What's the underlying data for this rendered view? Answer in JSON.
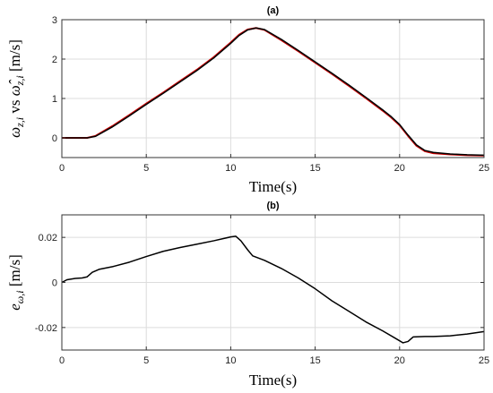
{
  "chart_data": [
    {
      "type": "line",
      "title": "(a)",
      "xlabel": "Time(s)",
      "ylabel": "ω",
      "ylabel_sub": "z,i",
      "ylabel_mid": " vs ",
      "ylabel_hat": "ω̂",
      "ylabel_hat_sub": "z,i",
      "ylabel_units": " [m/s]",
      "xlim": [
        0,
        25
      ],
      "ylim": [
        -0.5,
        3
      ],
      "xticks": [
        "0",
        "5",
        "10",
        "15",
        "20",
        "25"
      ],
      "yticks": [
        "0",
        "1",
        "2",
        "3"
      ],
      "grid": true,
      "series": [
        {
          "color": "#cc0000",
          "x": [
            0,
            0.5,
            1.0,
            1.5,
            2.0,
            3,
            4,
            5,
            6,
            7,
            8,
            9,
            10,
            10.5,
            11.0,
            11.5,
            12.0,
            13,
            14,
            15,
            16,
            17,
            18,
            19,
            19.5,
            20.0,
            20.5,
            21.0,
            21.5,
            22,
            23,
            24,
            25
          ],
          "y": [
            0,
            0,
            0.0,
            0.0,
            0.05,
            0.3,
            0.58,
            0.87,
            1.15,
            1.44,
            1.73,
            2.05,
            2.42,
            2.62,
            2.75,
            2.79,
            2.74,
            2.48,
            2.2,
            1.91,
            1.62,
            1.32,
            1.01,
            0.69,
            0.52,
            0.32,
            0.05,
            -0.2,
            -0.34,
            -0.39,
            -0.42,
            -0.44,
            -0.45
          ]
        },
        {
          "color": "#000000",
          "x": [
            0,
            0.5,
            1.0,
            1.5,
            2.0,
            3,
            4,
            5,
            6,
            7,
            8,
            9,
            10,
            10.5,
            11.0,
            11.5,
            12.0,
            13,
            14,
            15,
            16,
            17,
            18,
            19,
            19.5,
            20.0,
            20.5,
            21.0,
            21.5,
            22,
            23,
            24,
            25
          ],
          "y": [
            0,
            0,
            0.0,
            0.0,
            0.04,
            0.28,
            0.56,
            0.85,
            1.13,
            1.42,
            1.71,
            2.03,
            2.4,
            2.6,
            2.74,
            2.79,
            2.75,
            2.5,
            2.22,
            1.93,
            1.64,
            1.34,
            1.03,
            0.71,
            0.54,
            0.34,
            0.07,
            -0.18,
            -0.32,
            -0.37,
            -0.41,
            -0.43,
            -0.44
          ]
        }
      ]
    },
    {
      "type": "line",
      "title": "(b)",
      "xlabel": "Time(s)",
      "ylabel": "e",
      "ylabel_sub": "ω,i",
      "ylabel_units": " [m/s]",
      "xlim": [
        0,
        25
      ],
      "ylim": [
        -0.03,
        0.03
      ],
      "xticks": [
        "0",
        "5",
        "10",
        "15",
        "20",
        "25"
      ],
      "yticks": [
        "-0.02",
        "0",
        "0.02"
      ],
      "grid": true,
      "series": [
        {
          "color": "#000000",
          "x": [
            0,
            0.3,
            0.8,
            1.2,
            1.5,
            1.8,
            2.2,
            3,
            4,
            5,
            6,
            7,
            8,
            9,
            10,
            10.3,
            10.6,
            11.0,
            11.3,
            12,
            13,
            14,
            15,
            16,
            17,
            18,
            19,
            19.8,
            20.2,
            20.5,
            20.8,
            21.5,
            22,
            23,
            24,
            25
          ],
          "y": [
            0,
            0.0012,
            0.0018,
            0.002,
            0.0025,
            0.0045,
            0.0058,
            0.007,
            0.009,
            0.0115,
            0.0138,
            0.0155,
            0.017,
            0.0185,
            0.0202,
            0.0205,
            0.0185,
            0.0145,
            0.0118,
            0.0098,
            0.0062,
            0.002,
            -0.0028,
            -0.0082,
            -0.0128,
            -0.0175,
            -0.0215,
            -0.025,
            -0.0268,
            -0.0262,
            -0.0242,
            -0.024,
            -0.024,
            -0.0237,
            -0.0229,
            -0.0218
          ]
        }
      ]
    }
  ]
}
